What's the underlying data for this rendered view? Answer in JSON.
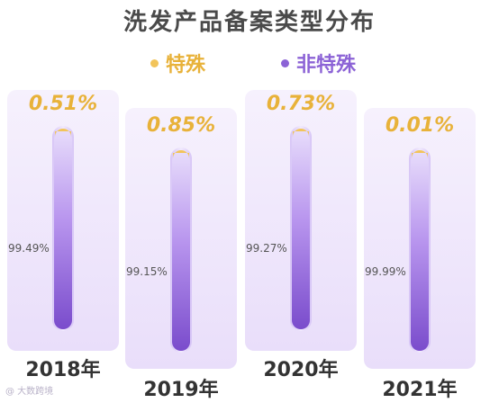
{
  "title": "洗发产品备案类型分布",
  "legend": {
    "special_label": "特殊",
    "nonspecial_label": "非特殊"
  },
  "colors": {
    "special": "#f2c45a",
    "nonspecial": "#8c63d6",
    "panel": "#efe8fb",
    "tube_track": "#e6dbfa",
    "title_text": "#4a4a4a",
    "special_text": "#e8b23a"
  },
  "chart_data": {
    "type": "bar",
    "title": "洗发产品备案类型分布",
    "categories": [
      "2018年",
      "2019年",
      "2020年",
      "2021年"
    ],
    "series": [
      {
        "name": "特殊",
        "values": [
          0.51,
          0.85,
          0.73,
          0.01
        ]
      },
      {
        "name": "非特殊",
        "values": [
          99.49,
          99.15,
          99.27,
          99.99
        ]
      }
    ],
    "special_labels": [
      "0.51%",
      "0.85%",
      "0.73%",
      "0.01%"
    ],
    "nonspecial_labels": [
      "99.49%",
      "99.15%",
      "99.27%",
      "99.99%"
    ],
    "stacked": true,
    "ylim": [
      0,
      100
    ],
    "xlabel": "",
    "ylabel": "",
    "legend_position": "top"
  },
  "watermark": "@ 大数跨境"
}
